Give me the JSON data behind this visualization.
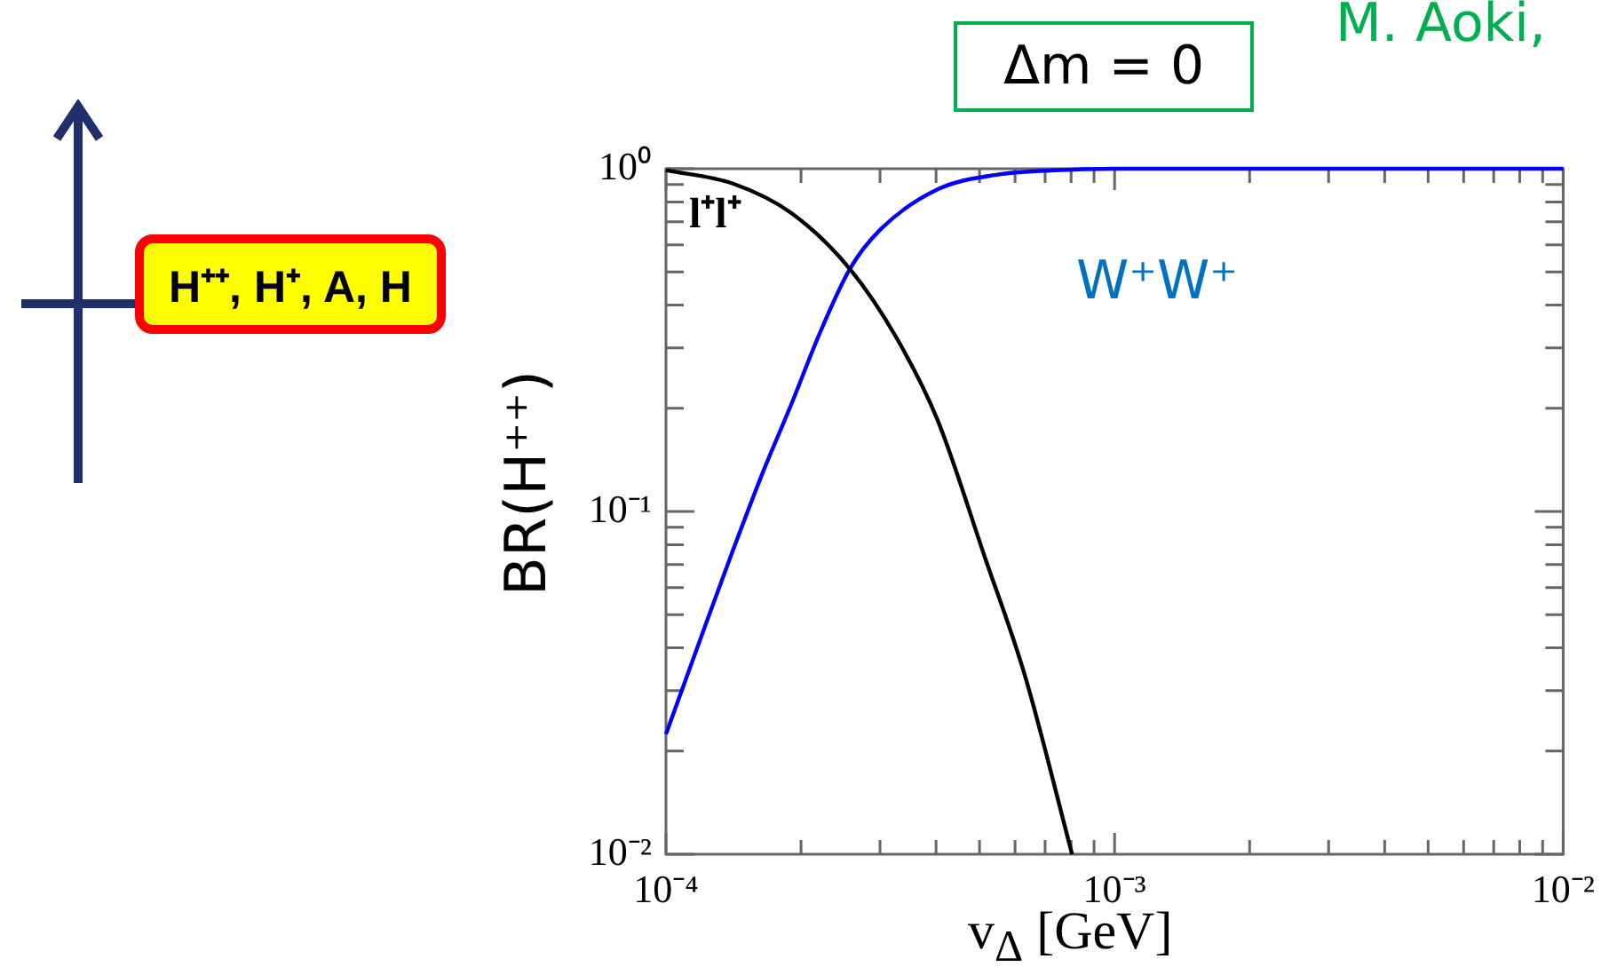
{
  "chart_data": {
    "type": "line",
    "xlabel": "v$_{Δ}$ [GeV]",
    "ylabel": "BR(H⁺⁺)",
    "log": "xy",
    "legend": false,
    "grid": false,
    "marker": "none",
    "line_style": "solid",
    "xlim": [
      0.0001,
      0.01
    ],
    "ylim": [
      0.01,
      1
    ],
    "xticks": [
      {
        "value": 0.0001,
        "label": "10⁻⁴"
      },
      {
        "value": 0.0002,
        "label": null
      },
      {
        "value": 0.0003,
        "label": null
      },
      {
        "value": 0.0004,
        "label": null
      },
      {
        "value": 0.0005,
        "label": null
      },
      {
        "value": 0.0006,
        "label": null
      },
      {
        "value": 0.0007,
        "label": null
      },
      {
        "value": 0.0008,
        "label": null
      },
      {
        "value": 0.0009,
        "label": null
      },
      {
        "value": 0.001,
        "label": "10⁻³"
      },
      {
        "value": 0.002,
        "label": null
      },
      {
        "value": 0.003,
        "label": null
      },
      {
        "value": 0.004,
        "label": null
      },
      {
        "value": 0.005,
        "label": null
      },
      {
        "value": 0.006,
        "label": null
      },
      {
        "value": 0.007,
        "label": null
      },
      {
        "value": 0.008,
        "label": null
      },
      {
        "value": 0.009,
        "label": null
      },
      {
        "value": 0.01,
        "label": "10⁻²"
      }
    ],
    "yticks": [
      {
        "value": 0.01,
        "label": "10⁻²"
      },
      {
        "value": 0.02,
        "label": null
      },
      {
        "value": 0.03,
        "label": null
      },
      {
        "value": 0.04,
        "label": null
      },
      {
        "value": 0.05,
        "label": null
      },
      {
        "value": 0.06,
        "label": null
      },
      {
        "value": 0.07,
        "label": null
      },
      {
        "value": 0.08,
        "label": null
      },
      {
        "value": 0.09,
        "label": null
      },
      {
        "value": 0.1,
        "label": "10⁻¹"
      },
      {
        "value": 0.2,
        "label": null
      },
      {
        "value": 0.3,
        "label": null
      },
      {
        "value": 0.4,
        "label": null
      },
      {
        "value": 0.5,
        "label": null
      },
      {
        "value": 0.6,
        "label": null
      },
      {
        "value": 0.7,
        "label": null
      },
      {
        "value": 0.8,
        "label": null
      },
      {
        "value": 0.9,
        "label": null
      },
      {
        "value": 1,
        "label": "10⁰"
      }
    ],
    "series": [
      {
        "name": "l⁺l⁺",
        "color": "#000000",
        "x": [
          0.0001,
          0.000141,
          0.000191,
          0.000257,
          0.000327,
          0.000403,
          0.000513,
          0.000632,
          0.000804
        ],
        "values": [
          0.99,
          0.905,
          0.74,
          0.51,
          0.32,
          0.185,
          0.074,
          0.033,
          0.01
        ]
      },
      {
        "name": "W⁺W⁺",
        "color": "#0000ff",
        "x": [
          0.0001,
          0.000122,
          0.000141,
          0.000164,
          0.000191,
          0.000221,
          0.000257,
          0.000299,
          0.000403,
          0.000545,
          0.000735,
          0.001,
          0.01
        ],
        "values": [
          0.0224,
          0.046,
          0.077,
          0.129,
          0.208,
          0.335,
          0.51,
          0.66,
          0.87,
          0.96,
          0.99,
          1,
          1
        ]
      }
    ],
    "annotations": [
      "Δm = 0",
      "M. Aoki,",
      "H⁺⁺, H⁺, A, H"
    ]
  }
}
